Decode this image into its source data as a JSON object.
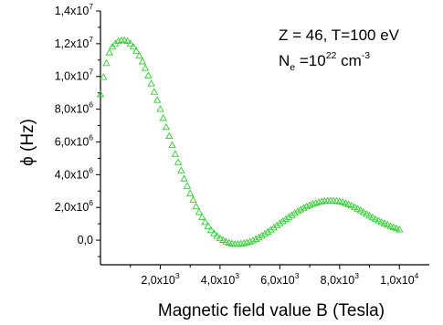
{
  "chart_data": {
    "type": "scatter",
    "xlabel": "Magnetic field value B (Tesla)",
    "ylabel": "ϕ (Hz)",
    "xlim": [
      0,
      11000
    ],
    "ylim": [
      -1500000,
      14000000
    ],
    "grid": false,
    "marker": "open-triangle",
    "colors": {
      "marker": "#33cc33",
      "axis": "#000000"
    },
    "x_ticks": [
      {
        "value": 2000,
        "mantissa": "2,0x10",
        "exp": "3"
      },
      {
        "value": 4000,
        "mantissa": "4,0x10",
        "exp": "3"
      },
      {
        "value": 6000,
        "mantissa": "6,0x10",
        "exp": "3"
      },
      {
        "value": 8000,
        "mantissa": "8,0x10",
        "exp": "3"
      },
      {
        "value": 10000,
        "mantissa": "1,0x10",
        "exp": "4"
      }
    ],
    "y_ticks": [
      {
        "value": 0,
        "mantissa": "0,0",
        "exp": ""
      },
      {
        "value": 2000000,
        "mantissa": "2,0x10",
        "exp": "6"
      },
      {
        "value": 4000000,
        "mantissa": "4,0x10",
        "exp": "6"
      },
      {
        "value": 6000000,
        "mantissa": "6,0x10",
        "exp": "6"
      },
      {
        "value": 8000000,
        "mantissa": "8,0x10",
        "exp": "6"
      },
      {
        "value": 10000000,
        "mantissa": "1,0x10",
        "exp": "7"
      },
      {
        "value": 12000000,
        "mantissa": "1,2x10",
        "exp": "7"
      },
      {
        "value": 14000000,
        "mantissa": "1,4x10",
        "exp": "7"
      }
    ],
    "annotation": {
      "line1": "Z = 46, T=100 eV",
      "line2_prefix": "N",
      "line2_sub": "e",
      "line2_eq": " =10",
      "line2_exp": "22",
      "line2_unit": " cm",
      "line2_unit_exp": "-3"
    },
    "series": [
      {
        "x": [
          0,
          100,
          200,
          300,
          400,
          500,
          600,
          700,
          800,
          900,
          1000,
          1100,
          1200,
          1300,
          1400,
          1500,
          1600,
          1700,
          1800,
          1900,
          2000,
          2100,
          2200,
          2300,
          2400,
          2500,
          2600,
          2700,
          2800,
          2900,
          3000,
          3100,
          3200,
          3300,
          3400,
          3500,
          3600,
          3700,
          3800,
          3900,
          4000,
          4100,
          4200,
          4300,
          4400,
          4500,
          4600,
          4700,
          4800,
          4900,
          5000,
          5100,
          5200,
          5300,
          5400,
          5500,
          5600,
          5700,
          5800,
          5900,
          6000,
          6100,
          6200,
          6300,
          6400,
          6500,
          6600,
          6700,
          6800,
          6900,
          7000,
          7100,
          7200,
          7300,
          7400,
          7500,
          7600,
          7700,
          7800,
          7900,
          8000,
          8100,
          8200,
          8300,
          8400,
          8500,
          8600,
          8700,
          8800,
          8900,
          9000,
          9100,
          9200,
          9300,
          9400,
          9500,
          9600,
          9700,
          9800,
          9900,
          10000
        ],
        "y": [
          8900000,
          9950000,
          10800000,
          11450000,
          11800000,
          12000000,
          12150000,
          12200000,
          12200000,
          12150000,
          12000000,
          11800000,
          11550000,
          11250000,
          10900000,
          10500000,
          10050000,
          9550000,
          9050000,
          8550000,
          8000000,
          7450000,
          6900000,
          6350000,
          5800000,
          5250000,
          4750000,
          4250000,
          3750000,
          3300000,
          2850000,
          2450000,
          2050000,
          1700000,
          1400000,
          1100000,
          850000,
          600000,
          400000,
          250000,
          100000,
          0,
          -100000,
          -170000,
          -220000,
          -250000,
          -250000,
          -230000,
          -200000,
          -150000,
          -100000,
          -30000,
          50000,
          150000,
          260000,
          380000,
          500000,
          630000,
          760000,
          890000,
          1020000,
          1150000,
          1280000,
          1400000,
          1520000,
          1640000,
          1750000,
          1860000,
          1960000,
          2050000,
          2130000,
          2200000,
          2260000,
          2310000,
          2350000,
          2380000,
          2400000,
          2410000,
          2400000,
          2380000,
          2350000,
          2310000,
          2250000,
          2180000,
          2100000,
          2010000,
          1910000,
          1810000,
          1700000,
          1590000,
          1480000,
          1380000,
          1280000,
          1190000,
          1100000,
          1010000,
          930000,
          850000,
          780000,
          710000,
          640000
        ]
      }
    ]
  }
}
